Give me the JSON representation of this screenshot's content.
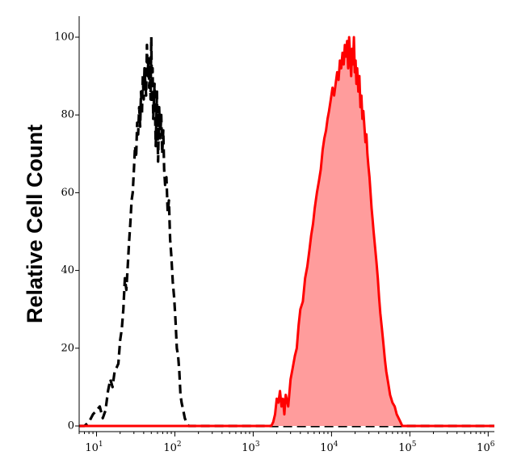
{
  "chart_data": {
    "type": "area",
    "title": "",
    "xlabel": "",
    "ylabel": "Relative Cell Count",
    "x_scale": "log",
    "xlim": [
      6,
      1200000
    ],
    "ylim": [
      0,
      100
    ],
    "grid": false,
    "legend": "none",
    "x_ticks": [
      {
        "value": 10,
        "base": "10",
        "exp": "1"
      },
      {
        "value": 100,
        "base": "10",
        "exp": "2"
      },
      {
        "value": 1000,
        "base": "10",
        "exp": "3"
      },
      {
        "value": 10000,
        "base": "10",
        "exp": "4"
      },
      {
        "value": 100000,
        "base": "10",
        "exp": "5"
      },
      {
        "value": 1000000,
        "base": "10",
        "exp": "6"
      }
    ],
    "y_ticks": [
      {
        "value": 0,
        "label": "0"
      },
      {
        "value": 20,
        "label": "20"
      },
      {
        "value": 40,
        "label": "40"
      },
      {
        "value": 60,
        "label": "60"
      },
      {
        "value": 80,
        "label": "80"
      },
      {
        "value": 100,
        "label": "100"
      }
    ],
    "series": [
      {
        "style": "dashed",
        "color": "#000000",
        "fill": "none",
        "points": [
          [
            6,
            0
          ],
          [
            7,
            0
          ],
          [
            8,
            1
          ],
          [
            9,
            3
          ],
          [
            10,
            4
          ],
          [
            11,
            5
          ],
          [
            12,
            2
          ],
          [
            13,
            4
          ],
          [
            14,
            9
          ],
          [
            15,
            12
          ],
          [
            16,
            10
          ],
          [
            17,
            14
          ],
          [
            18,
            15
          ],
          [
            19,
            16
          ],
          [
            20,
            22
          ],
          [
            21,
            25
          ],
          [
            22,
            30
          ],
          [
            23,
            38
          ],
          [
            24,
            35
          ],
          [
            25,
            41
          ],
          [
            26,
            47
          ],
          [
            27,
            52
          ],
          [
            28,
            58
          ],
          [
            29,
            60
          ],
          [
            30,
            66
          ],
          [
            31,
            72
          ],
          [
            32,
            69
          ],
          [
            33,
            78
          ],
          [
            34,
            75
          ],
          [
            35,
            82
          ],
          [
            36,
            77
          ],
          [
            37,
            86
          ],
          [
            38,
            80
          ],
          [
            39,
            90
          ],
          [
            40,
            84
          ],
          [
            41,
            92
          ],
          [
            42,
            88
          ],
          [
            43,
            85
          ],
          [
            44,
            98
          ],
          [
            45,
            90
          ],
          [
            46,
            95
          ],
          [
            47,
            87
          ],
          [
            48,
            93
          ],
          [
            49,
            84
          ],
          [
            50,
            100
          ],
          [
            51,
            83
          ],
          [
            52,
            92
          ],
          [
            53,
            79
          ],
          [
            55,
            88
          ],
          [
            57,
            72
          ],
          [
            59,
            86
          ],
          [
            61,
            68
          ],
          [
            63,
            82
          ],
          [
            65,
            74
          ],
          [
            67,
            80
          ],
          [
            69,
            70
          ],
          [
            71,
            76
          ],
          [
            73,
            66
          ],
          [
            75,
            62
          ],
          [
            78,
            64
          ],
          [
            81,
            55
          ],
          [
            84,
            58
          ],
          [
            87,
            48
          ],
          [
            90,
            44
          ],
          [
            94,
            37
          ],
          [
            98,
            33
          ],
          [
            102,
            27
          ],
          [
            106,
            20
          ],
          [
            110,
            18
          ],
          [
            114,
            14
          ],
          [
            118,
            8
          ],
          [
            122,
            6
          ],
          [
            128,
            4
          ],
          [
            134,
            2
          ],
          [
            140,
            1
          ],
          [
            150,
            0
          ],
          [
            170,
            0
          ],
          [
            200,
            0
          ],
          [
            300,
            0
          ],
          [
            600,
            0
          ],
          [
            1000,
            0
          ],
          [
            3000,
            0
          ],
          [
            10000,
            0
          ],
          [
            100000,
            0
          ],
          [
            1000000,
            0
          ],
          [
            1200000,
            0
          ]
        ]
      },
      {
        "style": "solid",
        "color": "#ff0000",
        "fill": "#ff9c9c",
        "points": [
          [
            6,
            0
          ],
          [
            1000,
            0
          ],
          [
            1700,
            0
          ],
          [
            1800,
            1
          ],
          [
            1900,
            3
          ],
          [
            2000,
            7
          ],
          [
            2100,
            6
          ],
          [
            2200,
            9
          ],
          [
            2300,
            5
          ],
          [
            2400,
            7
          ],
          [
            2500,
            3
          ],
          [
            2600,
            8
          ],
          [
            2800,
            5
          ],
          [
            3000,
            12
          ],
          [
            3200,
            15
          ],
          [
            3400,
            18
          ],
          [
            3600,
            20
          ],
          [
            3800,
            26
          ],
          [
            4000,
            30
          ],
          [
            4300,
            32
          ],
          [
            4600,
            38
          ],
          [
            4900,
            41
          ],
          [
            5200,
            45
          ],
          [
            5500,
            49
          ],
          [
            5800,
            52
          ],
          [
            6100,
            56
          ],
          [
            6500,
            60
          ],
          [
            6900,
            63
          ],
          [
            7300,
            66
          ],
          [
            7700,
            71
          ],
          [
            8100,
            74
          ],
          [
            8500,
            76
          ],
          [
            8900,
            79
          ],
          [
            9300,
            81
          ],
          [
            9800,
            84
          ],
          [
            10300,
            87
          ],
          [
            10800,
            85
          ],
          [
            11300,
            88
          ],
          [
            11800,
            91
          ],
          [
            12300,
            89
          ],
          [
            12800,
            94
          ],
          [
            13300,
            92
          ],
          [
            13800,
            96
          ],
          [
            14300,
            93
          ],
          [
            14800,
            98
          ],
          [
            15300,
            95
          ],
          [
            15800,
            99
          ],
          [
            16300,
            92
          ],
          [
            16800,
            100
          ],
          [
            17300,
            95
          ],
          [
            17800,
            90
          ],
          [
            18300,
            97
          ],
          [
            18800,
            93
          ],
          [
            19300,
            100
          ],
          [
            19800,
            91
          ],
          [
            20300,
            94
          ],
          [
            20800,
            88
          ],
          [
            21300,
            92
          ],
          [
            22000,
            86
          ],
          [
            22700,
            90
          ],
          [
            23400,
            82
          ],
          [
            24100,
            85
          ],
          [
            24800,
            79
          ],
          [
            25500,
            81
          ],
          [
            26300,
            77
          ],
          [
            27100,
            73
          ],
          [
            27900,
            75
          ],
          [
            28700,
            70
          ],
          [
            29500,
            67
          ],
          [
            30500,
            64
          ],
          [
            31500,
            60
          ],
          [
            32500,
            56
          ],
          [
            33500,
            53
          ],
          [
            34500,
            50
          ],
          [
            36000,
            46
          ],
          [
            37500,
            42
          ],
          [
            39000,
            38
          ],
          [
            40500,
            33
          ],
          [
            42000,
            29
          ],
          [
            44000,
            25
          ],
          [
            46000,
            21
          ],
          [
            48000,
            17
          ],
          [
            50000,
            14
          ],
          [
            53000,
            11
          ],
          [
            56000,
            8
          ],
          [
            60000,
            6
          ],
          [
            64000,
            5
          ],
          [
            68000,
            3
          ],
          [
            72000,
            2
          ],
          [
            76000,
            1
          ],
          [
            80000,
            0
          ],
          [
            100000,
            0
          ],
          [
            300000,
            0
          ],
          [
            1000000,
            0
          ],
          [
            1200000,
            0
          ]
        ]
      }
    ]
  }
}
